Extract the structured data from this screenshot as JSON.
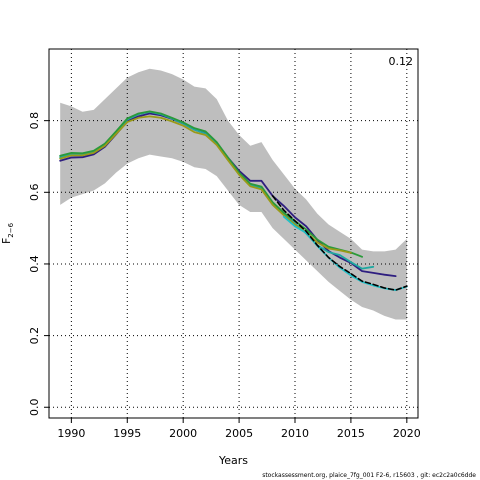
{
  "chart_data": {
    "type": "line",
    "xlabel": "Years",
    "ylabel_main": "F",
    "ylabel_sub": "2−6",
    "corner_label": "0.12",
    "xlim": [
      1988,
      2021
    ],
    "ylim": [
      -0.03,
      1.0
    ],
    "x_ticks": [
      1990,
      1995,
      2000,
      2005,
      2010,
      2015,
      2020
    ],
    "y_ticks": [
      0.0,
      0.2,
      0.4,
      0.6,
      0.8
    ],
    "x_tick_labels": [
      "1990",
      "1995",
      "2000",
      "2005",
      "2010",
      "2015",
      "2020"
    ],
    "y_tick_labels": [
      "0.0",
      "0.2",
      "0.4",
      "0.6",
      "0.8"
    ],
    "grid": true,
    "band": {
      "color": "#bebebe",
      "x": [
        1989,
        1990,
        1991,
        1992,
        1993,
        1994,
        1995,
        1996,
        1997,
        1998,
        1999,
        2000,
        2001,
        2002,
        2003,
        2004,
        2005,
        2006,
        2007,
        2008,
        2009,
        2010,
        2011,
        2012,
        2013,
        2014,
        2015,
        2016,
        2017,
        2018,
        2019,
        2020
      ],
      "upper": [
        0.85,
        0.84,
        0.825,
        0.83,
        0.86,
        0.89,
        0.92,
        0.935,
        0.945,
        0.94,
        0.93,
        0.915,
        0.895,
        0.89,
        0.86,
        0.8,
        0.76,
        0.73,
        0.74,
        0.69,
        0.65,
        0.61,
        0.58,
        0.54,
        0.51,
        0.49,
        0.47,
        0.44,
        0.435,
        0.435,
        0.44,
        0.47
      ],
      "lower": [
        0.565,
        0.585,
        0.595,
        0.605,
        0.625,
        0.655,
        0.68,
        0.695,
        0.705,
        0.7,
        0.695,
        0.685,
        0.67,
        0.665,
        0.645,
        0.605,
        0.565,
        0.545,
        0.545,
        0.5,
        0.47,
        0.44,
        0.41,
        0.38,
        0.35,
        0.325,
        0.3,
        0.28,
        0.27,
        0.255,
        0.245,
        0.245
      ]
    },
    "series": [
      {
        "color": "#2e1e80",
        "width": 1.8,
        "dash": "",
        "x": [
          1989,
          1990,
          1991,
          1992,
          1993,
          1994,
          1995,
          1996,
          1997,
          1998,
          1999,
          2000,
          2001,
          2002,
          2003,
          2004,
          2005,
          2006,
          2007,
          2008,
          2009,
          2010,
          2011,
          2012,
          2013,
          2014,
          2015,
          2016,
          2017,
          2018,
          2019
        ],
        "values": [
          0.688,
          0.697,
          0.698,
          0.706,
          0.727,
          0.762,
          0.798,
          0.812,
          0.82,
          0.815,
          0.805,
          0.792,
          0.775,
          0.765,
          0.738,
          0.697,
          0.66,
          0.632,
          0.632,
          0.59,
          0.562,
          0.53,
          0.505,
          0.467,
          0.436,
          0.418,
          0.403,
          0.38,
          0.375,
          0.37,
          0.366
        ]
      },
      {
        "color": "#1fa8a0",
        "width": 1.8,
        "dash": "",
        "x": [
          1989,
          1990,
          1991,
          1992,
          1993,
          1994,
          1995,
          1996,
          1997,
          1998,
          1999,
          2000,
          2001,
          2002,
          2003,
          2004,
          2005,
          2006,
          2007,
          2008,
          2009,
          2010,
          2011,
          2012,
          2013,
          2014,
          2015,
          2016,
          2017
        ],
        "values": [
          0.698,
          0.707,
          0.706,
          0.714,
          0.734,
          0.768,
          0.803,
          0.818,
          0.825,
          0.818,
          0.806,
          0.792,
          0.775,
          0.764,
          0.734,
          0.691,
          0.65,
          0.62,
          0.612,
          0.571,
          0.541,
          0.513,
          0.485,
          0.452,
          0.433,
          0.425,
          0.405,
          0.387,
          0.392
        ]
      },
      {
        "color": "#2a9a3a",
        "width": 1.8,
        "dash": "",
        "x": [
          1989,
          1990,
          1991,
          1992,
          1993,
          1994,
          1995,
          1996,
          1997,
          1998,
          1999,
          2000,
          2001,
          2002,
          2003,
          2004,
          2005,
          2006,
          2007,
          2008,
          2009,
          2010,
          2011,
          2012,
          2013,
          2014,
          2015,
          2016
        ],
        "values": [
          0.702,
          0.71,
          0.709,
          0.716,
          0.736,
          0.77,
          0.806,
          0.82,
          0.826,
          0.82,
          0.808,
          0.795,
          0.779,
          0.77,
          0.74,
          0.697,
          0.655,
          0.624,
          0.616,
          0.572,
          0.543,
          0.52,
          0.496,
          0.468,
          0.448,
          0.44,
          0.432,
          0.42
        ]
      },
      {
        "color": "#9a9a18",
        "width": 1.8,
        "dash": "",
        "x": [
          1989,
          1990,
          1991,
          1992,
          1993,
          1994,
          1995,
          1996,
          1997,
          1998,
          1999,
          2000,
          2001,
          2002,
          2003,
          2004,
          2005,
          2006,
          2007,
          2008,
          2009,
          2010,
          2011,
          2012,
          2013,
          2014,
          2015
        ],
        "values": [
          0.694,
          0.703,
          0.703,
          0.71,
          0.73,
          0.763,
          0.796,
          0.808,
          0.812,
          0.808,
          0.798,
          0.786,
          0.768,
          0.76,
          0.732,
          0.69,
          0.649,
          0.617,
          0.608,
          0.565,
          0.536,
          0.51,
          0.488,
          0.46,
          0.443,
          0.438,
          0.431
        ]
      },
      {
        "color": "#20c0c8",
        "width": 1.8,
        "dash": "",
        "x": [
          2009,
          2010,
          2011,
          2012,
          2013,
          2014,
          2015,
          2016,
          2017,
          2018,
          2019,
          2020
        ],
        "values": [
          0.532,
          0.505,
          0.487,
          0.45,
          0.418,
          0.39,
          0.368,
          0.35,
          0.34,
          0.332,
          0.327,
          0.337
        ]
      },
      {
        "color": "#000000",
        "width": 1.6,
        "dash": "5,3",
        "x": [
          2008,
          2009,
          2010,
          2011,
          2012,
          2013,
          2014,
          2015,
          2016,
          2017,
          2018,
          2019,
          2020
        ],
        "values": [
          0.59,
          0.55,
          0.52,
          0.491,
          0.452,
          0.418,
          0.393,
          0.373,
          0.352,
          0.343,
          0.333,
          0.327,
          0.338
        ]
      }
    ]
  },
  "footer_text": "stockassessment.org, plaice_7fg_001 F2-6, r15603 , git: ec2c2a0c6dde"
}
